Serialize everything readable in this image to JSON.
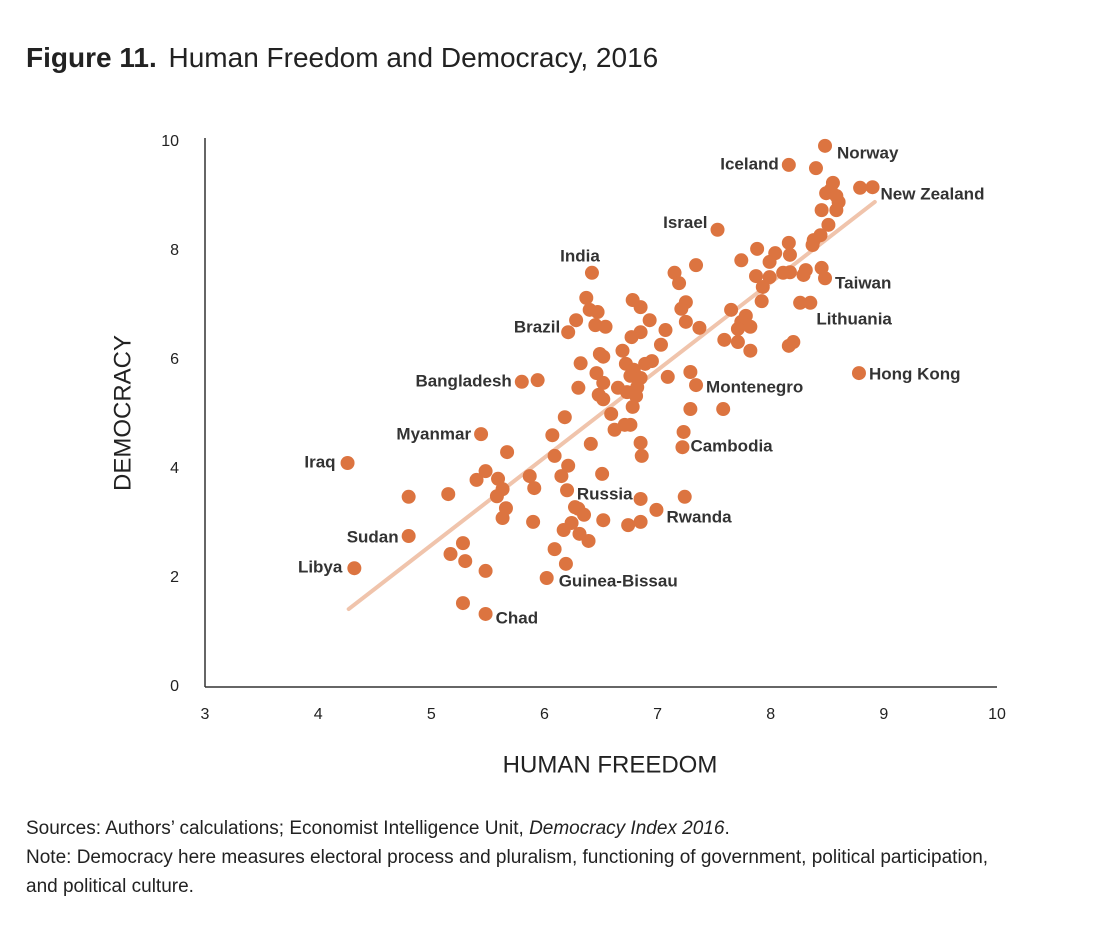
{
  "chart_data": {
    "type": "scatter",
    "title_bold": "Figure 11.",
    "title": "Human Freedom and Democracy, 2016",
    "xlabel": "HUMAN FREEDOM",
    "ylabel": "DEMOCRACY",
    "xlim": [
      3,
      10
    ],
    "xticks": [
      3,
      4,
      5,
      6,
      7,
      8,
      9,
      10
    ],
    "ylim": [
      0,
      10
    ],
    "yticks": [
      0,
      2,
      4,
      6,
      8,
      10
    ],
    "color": "#dc7440",
    "trendline": {
      "color": "#f0c4ac",
      "x": [
        4.27,
        8.92
      ],
      "y": [
        1.43,
        8.9
      ]
    },
    "series": [
      {
        "x": [
          8.48,
          8.16,
          8.9,
          7.53,
          6.42,
          8.48,
          8.35,
          6.21,
          8.78,
          5.8,
          7.34,
          5.44,
          7.22,
          4.26,
          6.85,
          6.99,
          4.8,
          4.32,
          6.02,
          5.48,
          8.79,
          8.4,
          8.55,
          8.49,
          8.53,
          8.58,
          8.6,
          8.45,
          8.58,
          8.51,
          8.44,
          8.38,
          8.37,
          8.16,
          8.17,
          8.04,
          7.88,
          7.99,
          7.74,
          7.87,
          7.99,
          8.11,
          8.17,
          8.31,
          8.29,
          8.45,
          7.93,
          7.92,
          8.26,
          7.65,
          7.78,
          7.74,
          7.82,
          7.71,
          7.59,
          7.71,
          7.82,
          8.2,
          8.16,
          7.15,
          7.34,
          7.19,
          7.25,
          7.21,
          7.25,
          7.37,
          7.07,
          7.03,
          6.95,
          6.89,
          7.09,
          7.29,
          7.29,
          7.58,
          7.23,
          6.78,
          6.85,
          6.93,
          6.85,
          6.77,
          6.69,
          6.72,
          6.79,
          6.85,
          6.76,
          6.82,
          6.81,
          6.65,
          6.73,
          6.78,
          6.59,
          6.62,
          6.71,
          6.76,
          6.85,
          6.86,
          6.37,
          6.4,
          6.47,
          6.28,
          6.45,
          6.54,
          6.49,
          6.52,
          6.32,
          6.46,
          6.52,
          6.3,
          6.48,
          6.52,
          6.18,
          6.07,
          6.41,
          6.09,
          5.94,
          5.67,
          6.21,
          5.48,
          5.87,
          6.15,
          6.51,
          5.4,
          5.59,
          5.63,
          5.91,
          6.2,
          5.58,
          5.15,
          4.8,
          6.27,
          6.3,
          6.35,
          5.66,
          5.63,
          5.9,
          6.52,
          6.24,
          6.74,
          6.85,
          7.24,
          6.17,
          6.31,
          6.39,
          5.28,
          5.17,
          5.3,
          6.09,
          6.19,
          5.48,
          5.28
        ],
        "y": [
          9.93,
          9.58,
          9.17,
          8.39,
          7.6,
          7.5,
          7.05,
          6.51,
          5.76,
          5.6,
          5.54,
          4.64,
          4.4,
          4.11,
          3.45,
          3.25,
          2.77,
          2.18,
          2.0,
          1.34,
          9.16,
          9.52,
          9.25,
          9.06,
          9.12,
          9.01,
          8.9,
          8.75,
          8.75,
          8.48,
          8.29,
          8.2,
          8.11,
          8.15,
          7.93,
          7.96,
          8.04,
          7.8,
          7.83,
          7.54,
          7.52,
          7.6,
          7.61,
          7.65,
          7.56,
          7.69,
          7.34,
          7.08,
          7.05,
          6.92,
          6.81,
          6.7,
          6.61,
          6.57,
          6.37,
          6.33,
          6.17,
          6.33,
          6.26,
          7.6,
          7.74,
          7.41,
          7.06,
          6.94,
          6.7,
          6.59,
          6.55,
          6.28,
          5.98,
          5.93,
          5.69,
          5.78,
          5.1,
          5.1,
          4.68,
          7.1,
          6.97,
          6.73,
          6.51,
          6.42,
          6.17,
          5.93,
          5.82,
          5.67,
          5.71,
          5.5,
          5.34,
          5.49,
          5.41,
          5.14,
          5.01,
          4.72,
          4.81,
          4.81,
          4.48,
          4.24,
          7.14,
          6.92,
          6.88,
          6.73,
          6.64,
          6.61,
          6.11,
          6.06,
          5.94,
          5.76,
          5.58,
          5.49,
          5.36,
          5.28,
          4.95,
          4.62,
          4.46,
          4.24,
          5.63,
          4.31,
          4.06,
          3.96,
          3.87,
          3.87,
          3.91,
          3.8,
          3.82,
          3.63,
          3.65,
          3.61,
          3.5,
          3.54,
          3.49,
          3.3,
          3.27,
          3.16,
          3.28,
          3.1,
          3.03,
          3.06,
          3.01,
          2.97,
          3.03,
          3.49,
          2.88,
          2.81,
          2.68,
          2.64,
          2.44,
          2.31,
          2.53,
          2.26,
          2.13,
          1.54
        ],
        "labels": [
          "Norway",
          "Iceland",
          "New Zealand",
          "Israel",
          "India",
          "Taiwan",
          "Lithuania",
          "Brazil",
          "Hong Kong",
          "Bangladesh",
          "Montenegro",
          "Myanmar",
          "Cambodia",
          "Iraq",
          "Russia",
          "Rwanda",
          "Sudan",
          "Libya",
          "Guinea-Bissau",
          "Chad"
        ]
      }
    ],
    "source_prefix": "Sources: Authors’ calculations; Economist Intelligence Unit,",
    "source_italic": "Democracy Index 2016",
    "source_suffix": ".",
    "note_line1": "Note: Democracy here measures electoral process and pluralism, functioning of government, political participation,",
    "note_line2": "and political culture."
  }
}
